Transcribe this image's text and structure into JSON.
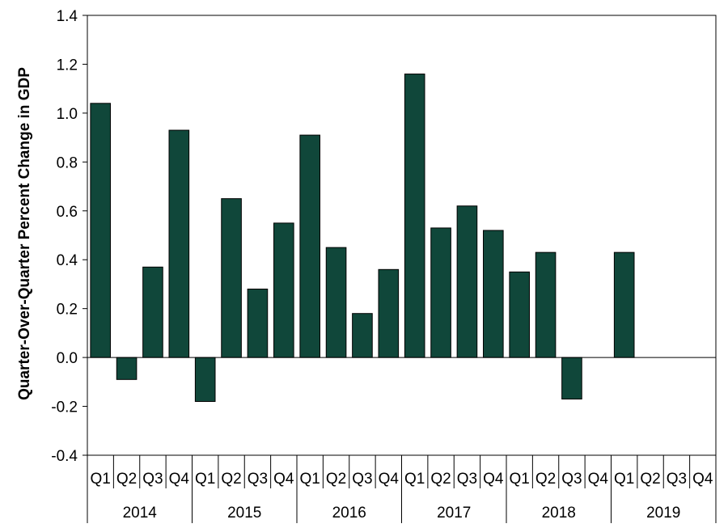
{
  "chart_data": {
    "type": "bar",
    "ylabel": "Quarter-Over-Quarter Percent Change in GDP",
    "ylim": [
      -0.4,
      1.4
    ],
    "yticks": [
      "-0.4",
      "-0.2",
      "0.0",
      "0.2",
      "0.4",
      "0.6",
      "0.8",
      "1.0",
      "1.2",
      "1.4"
    ],
    "years": [
      "2014",
      "2015",
      "2016",
      "2017",
      "2018",
      "2019"
    ],
    "quarters": [
      "Q1",
      "Q2",
      "Q3",
      "Q4"
    ],
    "values": [
      1.04,
      -0.09,
      0.37,
      0.93,
      -0.18,
      0.65,
      0.28,
      0.55,
      0.91,
      0.45,
      0.18,
      0.36,
      1.16,
      0.53,
      0.62,
      0.52,
      0.35,
      0.43,
      -0.17,
      null,
      0.43,
      null,
      null,
      null
    ],
    "bar_color": "#10473a",
    "grid": false
  }
}
